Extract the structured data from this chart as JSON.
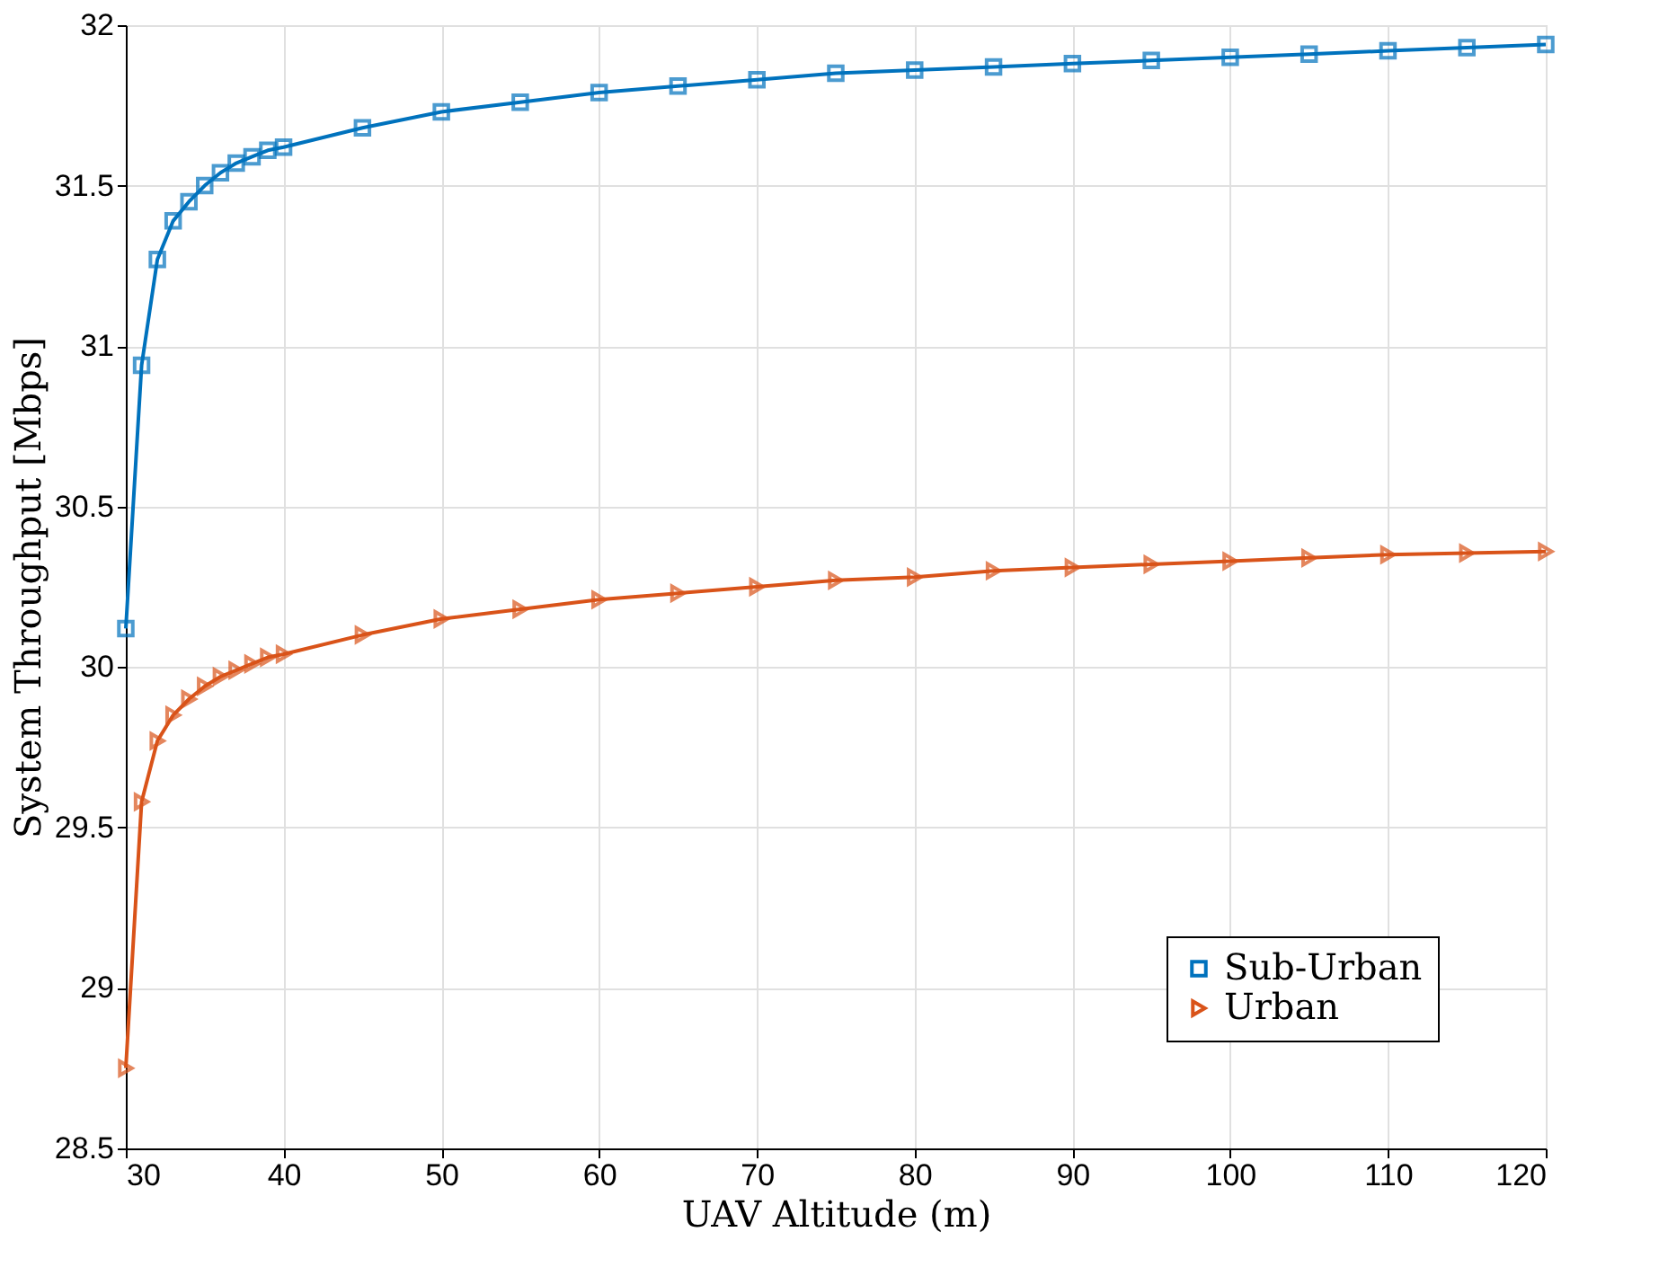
{
  "chart_data": {
    "type": "line",
    "xlabel": "UAV Altitude (m)",
    "ylabel": "System Throughput [Mbps]",
    "xlim": [
      30,
      120
    ],
    "xticks": [
      30,
      40,
      50,
      60,
      70,
      80,
      90,
      100,
      110,
      120
    ],
    "ylim": [
      28.5,
      32
    ],
    "yticks": [
      28.5,
      29,
      29.5,
      30,
      30.5,
      31,
      31.5,
      32
    ],
    "grid": true,
    "legend": "bottom right",
    "line_style": "solid",
    "x": [
      30,
      31,
      32,
      33,
      34,
      35,
      36,
      37,
      38,
      39,
      40,
      45,
      50,
      55,
      60,
      65,
      70,
      75,
      80,
      85,
      90,
      95,
      100,
      105,
      110,
      115,
      120
    ],
    "series": [
      {
        "name": "Sub-Urban",
        "color": "#0072bd",
        "marker": "square",
        "values": [
          30.12,
          30.94,
          31.27,
          31.39,
          31.45,
          31.5,
          31.54,
          31.57,
          31.59,
          31.61,
          31.62,
          31.68,
          31.73,
          31.76,
          31.79,
          31.81,
          31.83,
          31.85,
          31.86,
          31.87,
          31.88,
          31.89,
          31.9,
          31.91,
          31.92,
          31.93,
          31.94
        ]
      },
      {
        "name": "Urban",
        "color": "#d95319",
        "marker": "triangle",
        "values": [
          28.75,
          29.58,
          29.77,
          29.85,
          29.9,
          29.94,
          29.97,
          29.99,
          30.01,
          30.03,
          30.04,
          30.1,
          30.15,
          30.18,
          30.21,
          30.23,
          30.25,
          30.27,
          30.28,
          30.3,
          30.31,
          30.32,
          30.33,
          30.34,
          30.35,
          30.355,
          30.36
        ]
      }
    ]
  }
}
